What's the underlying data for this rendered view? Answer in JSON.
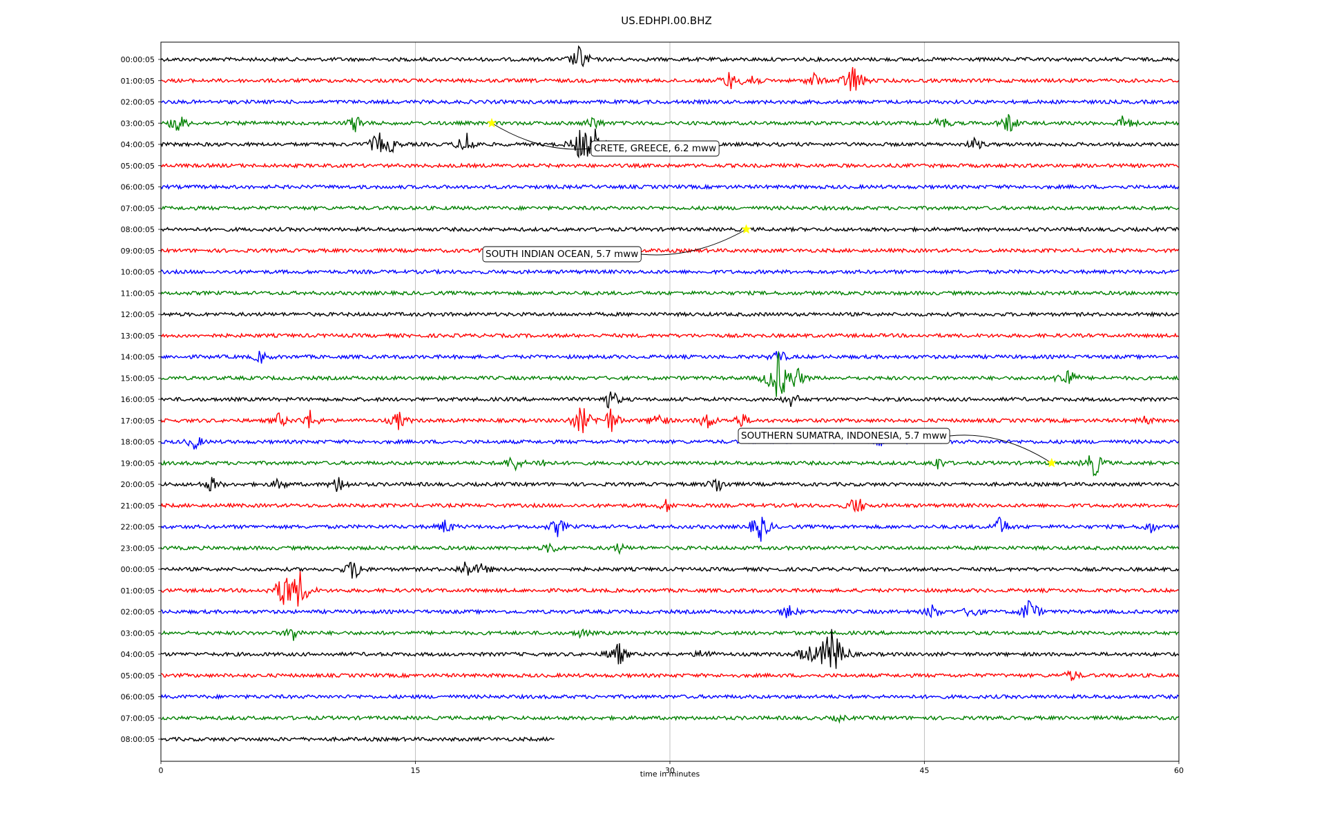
{
  "chart_data": {
    "type": "line",
    "title": "US.EDHPI.00.BHZ",
    "xlabel": "time in minutes",
    "ylabel": "",
    "xlim": [
      0,
      60
    ],
    "x_ticks": [
      0,
      15,
      30,
      45,
      60
    ],
    "grid": "vertical",
    "color_cycle": [
      "#000000",
      "#ff0000",
      "#0000ff",
      "#008000"
    ],
    "rows": [
      "00:00:05",
      "01:00:05",
      "02:00:05",
      "03:00:05",
      "04:00:05",
      "05:00:05",
      "06:00:05",
      "07:00:05",
      "08:00:05",
      "09:00:05",
      "10:00:05",
      "11:00:05",
      "12:00:05",
      "13:00:05",
      "14:00:05",
      "15:00:05",
      "16:00:05",
      "17:00:05",
      "18:00:05",
      "19:00:05",
      "20:00:05",
      "21:00:05",
      "22:00:05",
      "23:00:05",
      "00:00:05",
      "01:00:05",
      "02:00:05",
      "03:00:05",
      "04:00:05",
      "05:00:05",
      "06:00:05",
      "07:00:05",
      "08:00:05"
    ],
    "last_row_end_minute": 23.2,
    "events": [
      {
        "row": 3,
        "minute": 19.5,
        "label": "CRETE, GREECE, 6.2 mww"
      },
      {
        "row": 8,
        "minute": 34.5,
        "label": "SOUTH INDIAN OCEAN, 5.7 mww"
      },
      {
        "row": 19,
        "minute": 52.5,
        "label": "SOUTHERN SUMATRA, INDONESIA, 5.7 mww"
      }
    ],
    "bursts": [
      {
        "row": 0,
        "minute": 24.7,
        "amp": 0.9
      },
      {
        "row": 1,
        "minute": 33.5,
        "amp": 0.6
      },
      {
        "row": 1,
        "minute": 34.8,
        "amp": 0.6
      },
      {
        "row": 1,
        "minute": 38.5,
        "amp": 0.5
      },
      {
        "row": 1,
        "minute": 40.8,
        "amp": 1.1
      },
      {
        "row": 3,
        "minute": 1.0,
        "amp": 0.7
      },
      {
        "row": 3,
        "minute": 11.5,
        "amp": 0.6
      },
      {
        "row": 3,
        "minute": 25.5,
        "amp": 0.5
      },
      {
        "row": 3,
        "minute": 46.0,
        "amp": 0.5
      },
      {
        "row": 3,
        "minute": 50.0,
        "amp": 0.7
      },
      {
        "row": 3,
        "minute": 56.8,
        "amp": 0.6
      },
      {
        "row": 4,
        "minute": 12.8,
        "amp": 0.8
      },
      {
        "row": 4,
        "minute": 13.6,
        "amp": 0.4
      },
      {
        "row": 4,
        "minute": 18.0,
        "amp": 0.8
      },
      {
        "row": 4,
        "minute": 24.7,
        "amp": 0.9
      },
      {
        "row": 4,
        "minute": 25.5,
        "amp": 1.1
      },
      {
        "row": 4,
        "minute": 48.0,
        "amp": 0.4
      },
      {
        "row": 14,
        "minute": 5.9,
        "amp": 0.4
      },
      {
        "row": 14,
        "minute": 36.4,
        "amp": 0.5
      },
      {
        "row": 15,
        "minute": 36.4,
        "amp": 1.6
      },
      {
        "row": 15,
        "minute": 37.5,
        "amp": 0.6
      },
      {
        "row": 15,
        "minute": 53.4,
        "amp": 0.8
      },
      {
        "row": 16,
        "minute": 26.5,
        "amp": 0.7
      },
      {
        "row": 16,
        "minute": 37.2,
        "amp": 0.5
      },
      {
        "row": 17,
        "minute": 7.0,
        "amp": 0.5
      },
      {
        "row": 17,
        "minute": 8.8,
        "amp": 0.6
      },
      {
        "row": 17,
        "minute": 14.0,
        "amp": 0.6
      },
      {
        "row": 17,
        "minute": 24.8,
        "amp": 1.0
      },
      {
        "row": 17,
        "minute": 26.5,
        "amp": 0.8
      },
      {
        "row": 17,
        "minute": 29.3,
        "amp": 0.6
      },
      {
        "row": 17,
        "minute": 32.2,
        "amp": 0.6
      },
      {
        "row": 17,
        "minute": 34.2,
        "amp": 0.5
      },
      {
        "row": 17,
        "minute": 58.0,
        "amp": 0.3
      },
      {
        "row": 18,
        "minute": 2.0,
        "amp": 0.5
      },
      {
        "row": 18,
        "minute": 42.5,
        "amp": 0.3
      },
      {
        "row": 19,
        "minute": 20.8,
        "amp": 0.6
      },
      {
        "row": 19,
        "minute": 22.5,
        "amp": 0.3
      },
      {
        "row": 19,
        "minute": 45.8,
        "amp": 0.4
      },
      {
        "row": 19,
        "minute": 55.0,
        "amp": 0.9
      },
      {
        "row": 20,
        "minute": 3.0,
        "amp": 0.5
      },
      {
        "row": 20,
        "minute": 7.0,
        "amp": 0.4
      },
      {
        "row": 20,
        "minute": 10.5,
        "amp": 0.6
      },
      {
        "row": 20,
        "minute": 32.8,
        "amp": 0.6
      },
      {
        "row": 21,
        "minute": 29.8,
        "amp": 0.4
      },
      {
        "row": 21,
        "minute": 41.0,
        "amp": 0.7
      },
      {
        "row": 22,
        "minute": 16.8,
        "amp": 0.5
      },
      {
        "row": 22,
        "minute": 23.4,
        "amp": 0.6
      },
      {
        "row": 22,
        "minute": 35.3,
        "amp": 1.0
      },
      {
        "row": 22,
        "minute": 49.5,
        "amp": 0.7
      },
      {
        "row": 22,
        "minute": 58.3,
        "amp": 0.4
      },
      {
        "row": 23,
        "minute": 23.0,
        "amp": 0.4
      },
      {
        "row": 23,
        "minute": 27.0,
        "amp": 0.3
      },
      {
        "row": 24,
        "minute": 11.4,
        "amp": 0.8
      },
      {
        "row": 24,
        "minute": 18.0,
        "amp": 0.6
      },
      {
        "row": 24,
        "minute": 19.0,
        "amp": 0.4
      },
      {
        "row": 25,
        "minute": 7.3,
        "amp": 1.2
      },
      {
        "row": 25,
        "minute": 8.2,
        "amp": 1.1
      },
      {
        "row": 26,
        "minute": 37.0,
        "amp": 0.5
      },
      {
        "row": 26,
        "minute": 45.5,
        "amp": 0.5
      },
      {
        "row": 26,
        "minute": 47.8,
        "amp": 0.5
      },
      {
        "row": 26,
        "minute": 51.2,
        "amp": 0.9
      },
      {
        "row": 27,
        "minute": 7.8,
        "amp": 0.5
      },
      {
        "row": 27,
        "minute": 24.8,
        "amp": 0.3
      },
      {
        "row": 28,
        "minute": 26.9,
        "amp": 0.9
      },
      {
        "row": 28,
        "minute": 32.0,
        "amp": 0.4
      },
      {
        "row": 28,
        "minute": 38.0,
        "amp": 0.6
      },
      {
        "row": 28,
        "minute": 39.5,
        "amp": 1.9
      },
      {
        "row": 29,
        "minute": 53.7,
        "amp": 0.4
      },
      {
        "row": 31,
        "minute": 40.0,
        "amp": 0.2
      }
    ]
  }
}
